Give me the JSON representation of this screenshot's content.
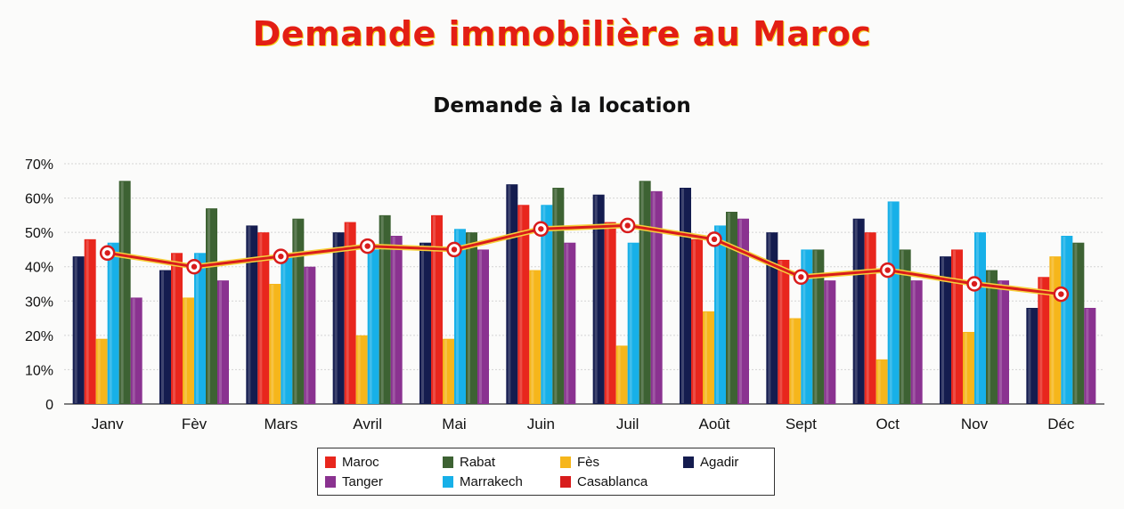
{
  "title": "Demande immobilière au Maroc",
  "subtitle": "Demande à la location",
  "colors": {
    "agadir": "#141c4f",
    "maroc": "#e8261d",
    "fes": "#f6b61b",
    "marrakech": "#17b0e8",
    "rabat": "#3d6233",
    "tanger": "#8a3290",
    "casablanca": "#d81c1c",
    "casablanca_outline": "#f7d23c"
  },
  "legend": [
    {
      "key": "maroc",
      "label": "Maroc"
    },
    {
      "key": "rabat",
      "label": "Rabat"
    },
    {
      "key": "fes",
      "label": "Fès"
    },
    {
      "key": "agadir",
      "label": "Agadir"
    },
    {
      "key": "tanger",
      "label": "Tanger"
    },
    {
      "key": "marrakech",
      "label": "Marrakech"
    },
    {
      "key": "casablanca",
      "label": "Casablanca"
    }
  ],
  "chart_data": {
    "type": "bar",
    "title": "Demande à la location",
    "categories": [
      "Janv",
      "Fèv",
      "Mars",
      "Avril",
      "Mai",
      "Juin",
      "Juil",
      "Août",
      "Sept",
      "Oct",
      "Nov",
      "Déc"
    ],
    "y_ticks": [
      "0",
      "10%",
      "20%",
      "30%",
      "40%",
      "50%",
      "60%",
      "70%"
    ],
    "ylim": [
      0,
      70
    ],
    "grid": true,
    "legend_position": "bottom",
    "series": [
      {
        "key": "agadir",
        "name": "Agadir",
        "kind": "bar",
        "values": [
          43,
          39,
          52,
          50,
          47,
          64,
          61,
          63,
          50,
          54,
          43,
          28
        ]
      },
      {
        "key": "maroc",
        "name": "Maroc",
        "kind": "bar",
        "values": [
          48,
          44,
          50,
          53,
          55,
          58,
          53,
          48,
          42,
          50,
          45,
          37
        ]
      },
      {
        "key": "fes",
        "name": "Fès",
        "kind": "bar",
        "values": [
          19,
          31,
          35,
          20,
          19,
          39,
          17,
          27,
          25,
          13,
          21,
          43
        ]
      },
      {
        "key": "marrakech",
        "name": "Marrakech",
        "kind": "bar",
        "values": [
          47,
          44,
          43,
          45,
          51,
          58,
          47,
          52,
          45,
          59,
          50,
          49
        ]
      },
      {
        "key": "rabat",
        "name": "Rabat",
        "kind": "bar",
        "values": [
          65,
          57,
          54,
          55,
          50,
          63,
          65,
          56,
          45,
          45,
          39,
          47
        ]
      },
      {
        "key": "tanger",
        "name": "Tanger",
        "kind": "bar",
        "values": [
          31,
          36,
          40,
          49,
          45,
          47,
          62,
          54,
          36,
          36,
          36,
          28
        ]
      },
      {
        "key": "casablanca",
        "name": "Casablanca",
        "kind": "line",
        "values": [
          44,
          40,
          43,
          46,
          45,
          51,
          52,
          48,
          37,
          39,
          35,
          32
        ]
      }
    ]
  }
}
